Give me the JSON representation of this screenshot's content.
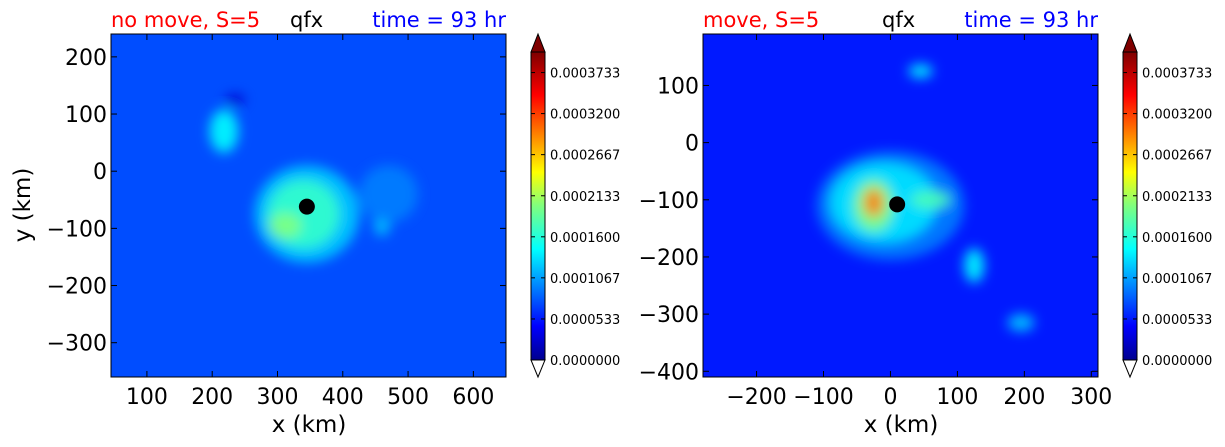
{
  "chart_data": [
    {
      "type": "heatmap",
      "title_left": "no move, S=5",
      "title_center": "qfx",
      "title_right": "time = 93 hr",
      "xlabel": "x (km)",
      "ylabel": "y (km)",
      "xlim": [
        45,
        650
      ],
      "ylim": [
        -360,
        240
      ],
      "xticks": [
        100,
        200,
        300,
        400,
        500,
        600
      ],
      "xtick_labels": [
        "100",
        "200",
        "300",
        "400",
        "500",
        "600"
      ],
      "yticks": [
        200,
        100,
        0,
        -100,
        -200,
        -300
      ],
      "ytick_labels": [
        "200",
        "100",
        "0",
        "−100",
        "−200",
        "−300"
      ],
      "center_marker": {
        "x": 345,
        "y": -62
      },
      "background_level": 8e-05,
      "features": [
        {
          "x": 345,
          "y": -75,
          "rx": 80,
          "ry": 85,
          "level": 0.00013
        },
        {
          "x": 340,
          "y": -75,
          "rx": 55,
          "ry": 60,
          "level": 0.00017
        },
        {
          "x": 312,
          "y": -95,
          "rx": 25,
          "ry": 22,
          "level": 0.0002
        },
        {
          "x": 218,
          "y": 70,
          "rx": 22,
          "ry": 38,
          "level": 0.00015
        },
        {
          "x": 235,
          "y": 125,
          "rx": 15,
          "ry": 10,
          "level": 3e-05
        },
        {
          "x": 460,
          "y": -95,
          "rx": 12,
          "ry": 18,
          "level": 0.00013
        },
        {
          "x": 470,
          "y": -40,
          "rx": 45,
          "ry": 50,
          "level": 0.0001
        }
      ]
    },
    {
      "type": "heatmap",
      "title_left": "move, S=5",
      "title_center": "qfx",
      "title_right": "time = 93 hr",
      "xlabel": "x (km)",
      "ylabel": "",
      "xlim": [
        -280,
        310
      ],
      "ylim": [
        -410,
        190
      ],
      "xticks": [
        -200,
        -100,
        0,
        100,
        200,
        300
      ],
      "xtick_labels": [
        "−200",
        "−100",
        "0",
        "100",
        "200",
        "300"
      ],
      "yticks": [
        100,
        0,
        -100,
        -200,
        -300,
        -400
      ],
      "ytick_labels": [
        "100",
        "0",
        "−100",
        "−200",
        "−300",
        "−400"
      ],
      "center_marker": {
        "x": 10,
        "y": -108
      },
      "background_level": 6e-05,
      "features": [
        {
          "x": 0,
          "y": -110,
          "rx": 110,
          "ry": 95,
          "level": 0.0001
        },
        {
          "x": -10,
          "y": -105,
          "rx": 80,
          "ry": 70,
          "level": 0.00014
        },
        {
          "x": -25,
          "y": -110,
          "rx": 30,
          "ry": 45,
          "level": 0.0002
        },
        {
          "x": -25,
          "y": -105,
          "rx": 15,
          "ry": 25,
          "level": 0.0003
        },
        {
          "x": 60,
          "y": -100,
          "rx": 30,
          "ry": 15,
          "level": 0.00018
        },
        {
          "x": 45,
          "y": 125,
          "rx": 18,
          "ry": 12,
          "level": 0.00015
        },
        {
          "x": 125,
          "y": -215,
          "rx": 15,
          "ry": 30,
          "level": 0.00015
        },
        {
          "x": 195,
          "y": -315,
          "rx": 20,
          "ry": 15,
          "level": 0.00013
        }
      ]
    }
  ],
  "colorbar": {
    "min": 0,
    "max": 0.0004,
    "tick_values": [
      0,
      5.33e-05,
      0.0001067,
      0.00016,
      0.0002133,
      0.0002667,
      0.00032,
      0.0003733
    ],
    "tick_labels": [
      "0.0000000",
      "0.0000533",
      "0.0001067",
      "0.0001600",
      "0.0002133",
      "0.0002667",
      "0.0003200",
      "0.0003733"
    ]
  },
  "colors": {
    "title_left": "#ff0000",
    "title_center": "#000000",
    "title_right": "#0000ff",
    "marker": "#000000",
    "colormap": "jet"
  }
}
